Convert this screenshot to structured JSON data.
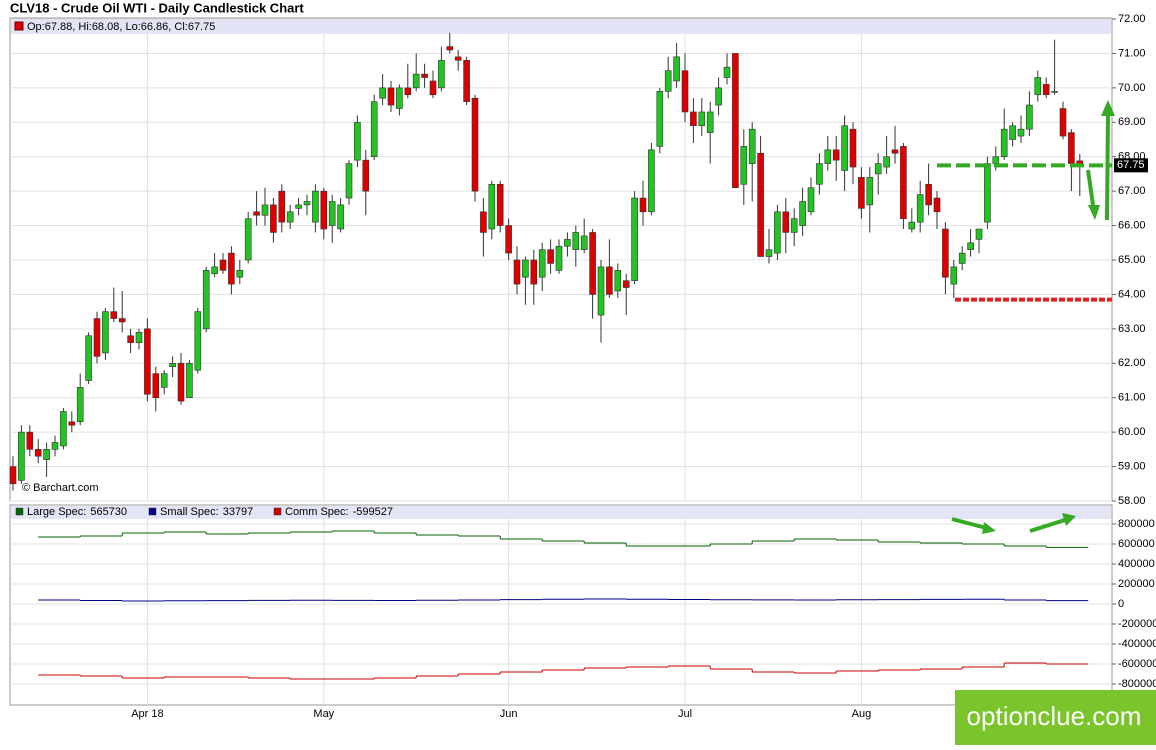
{
  "chart_data": {
    "type": "candlestick",
    "title": "CLV18 - Crude Oil WTI - Daily Candlestick Chart",
    "ohlc_label": "Op:67.88, Hi:68.08, Lo:66.86, Cl:67.75",
    "source": "© Barchart.com",
    "watermark": "optionclue.com",
    "up_color": "#22c322",
    "down_color": "#dd0000",
    "grid": true,
    "ylim": [
      58,
      72
    ],
    "yticks": [
      {
        "value": 58,
        "label": "58.00"
      },
      {
        "value": 59,
        "label": "59.00"
      },
      {
        "value": 60,
        "label": "60.00"
      },
      {
        "value": 61,
        "label": "61.00"
      },
      {
        "value": 62,
        "label": "62.00"
      },
      {
        "value": 63,
        "label": "63.00"
      },
      {
        "value": 64,
        "label": "64.00"
      },
      {
        "value": 65,
        "label": "65.00"
      },
      {
        "value": 66,
        "label": "66.00"
      },
      {
        "value": 67,
        "label": "67.00"
      },
      {
        "value": 68,
        "label": "68.00"
      },
      {
        "value": 69,
        "label": "69.00"
      },
      {
        "value": 70,
        "label": "70.00"
      },
      {
        "value": 71,
        "label": "71.00"
      },
      {
        "value": 72,
        "label": "72.00"
      }
    ],
    "categories": [
      null,
      null,
      null,
      null,
      null,
      null,
      null,
      null,
      null,
      null,
      null,
      null,
      null,
      null,
      null,
      null,
      "Apr 18",
      null,
      null,
      null,
      null,
      null,
      null,
      null,
      null,
      null,
      null,
      null,
      null,
      null,
      null,
      null,
      null,
      null,
      null,
      null,
      null,
      "May",
      null,
      null,
      null,
      null,
      null,
      null,
      null,
      null,
      null,
      null,
      null,
      null,
      null,
      null,
      null,
      null,
      null,
      null,
      null,
      null,
      null,
      "Jun",
      null,
      null,
      null,
      null,
      null,
      null,
      null,
      null,
      null,
      null,
      null,
      null,
      null,
      null,
      null,
      null,
      null,
      null,
      null,
      null,
      "Jul",
      null,
      null,
      null,
      null,
      null,
      null,
      null,
      null,
      null,
      null,
      null,
      null,
      null,
      null,
      null,
      null,
      null,
      null,
      null,
      null,
      "Aug",
      null,
      null,
      null,
      null,
      null,
      null,
      null,
      null,
      null,
      null,
      null,
      null,
      null,
      null,
      null,
      null,
      null,
      null,
      null,
      null,
      null,
      null,
      null,
      null,
      null,
      null
    ],
    "ohlc": [
      [
        59.0,
        59.3,
        58.3,
        58.5
      ],
      [
        58.6,
        60.2,
        58.5,
        60.0
      ],
      [
        60.0,
        60.2,
        59.3,
        59.5
      ],
      [
        59.5,
        59.8,
        59.1,
        59.3
      ],
      [
        59.2,
        59.7,
        58.7,
        59.5
      ],
      [
        59.5,
        59.9,
        59.3,
        59.7
      ],
      [
        59.6,
        60.7,
        59.5,
        60.6
      ],
      [
        60.3,
        60.6,
        60.0,
        60.2
      ],
      [
        60.3,
        61.7,
        60.2,
        61.3
      ],
      [
        61.5,
        62.9,
        61.4,
        62.8
      ],
      [
        63.3,
        63.5,
        62.0,
        62.2
      ],
      [
        62.3,
        63.6,
        62.1,
        63.5
      ],
      [
        63.5,
        64.2,
        63.2,
        63.3
      ],
      [
        63.3,
        64.1,
        62.9,
        63.2
      ],
      [
        62.8,
        63.0,
        62.3,
        62.6
      ],
      [
        62.6,
        63.0,
        62.4,
        62.9
      ],
      [
        63.0,
        63.3,
        60.9,
        61.1
      ],
      [
        61.7,
        61.9,
        60.6,
        61.0
      ],
      [
        61.3,
        61.8,
        61.1,
        61.7
      ],
      [
        61.9,
        62.2,
        61.6,
        62.0
      ],
      [
        62.0,
        62.3,
        60.8,
        60.9
      ],
      [
        61.0,
        62.1,
        61.0,
        62.0
      ],
      [
        61.8,
        63.6,
        61.7,
        63.5
      ],
      [
        63.0,
        64.8,
        62.9,
        64.7
      ],
      [
        64.6,
        65.2,
        64.5,
        64.8
      ],
      [
        65.0,
        65.2,
        64.6,
        64.7
      ],
      [
        65.2,
        65.4,
        64.0,
        64.3
      ],
      [
        64.5,
        65.0,
        64.3,
        64.7
      ],
      [
        65.0,
        66.4,
        64.9,
        66.2
      ],
      [
        66.4,
        67.0,
        66.0,
        66.3
      ],
      [
        66.3,
        67.1,
        66.0,
        66.6
      ],
      [
        66.6,
        66.8,
        65.5,
        65.8
      ],
      [
        67.0,
        67.2,
        65.8,
        66.1
      ],
      [
        66.1,
        66.6,
        65.9,
        66.4
      ],
      [
        66.5,
        66.8,
        66.3,
        66.6
      ],
      [
        66.6,
        66.9,
        66.3,
        66.7
      ],
      [
        66.1,
        67.2,
        65.8,
        67.0
      ],
      [
        67.0,
        67.1,
        65.6,
        65.9
      ],
      [
        66.0,
        66.9,
        65.5,
        66.7
      ],
      [
        65.9,
        66.8,
        65.8,
        66.6
      ],
      [
        66.8,
        67.9,
        66.6,
        67.8
      ],
      [
        67.9,
        69.2,
        67.7,
        69.0
      ],
      [
        67.9,
        68.2,
        66.3,
        67.0
      ],
      [
        68.0,
        69.8,
        67.9,
        69.6
      ],
      [
        69.7,
        70.4,
        69.5,
        70.0
      ],
      [
        70.0,
        70.2,
        69.3,
        69.5
      ],
      [
        69.4,
        70.1,
        69.2,
        70.0
      ],
      [
        70.0,
        70.7,
        69.7,
        69.8
      ],
      [
        70.0,
        71.0,
        69.9,
        70.4
      ],
      [
        70.4,
        70.7,
        70.0,
        70.3
      ],
      [
        70.2,
        70.5,
        69.7,
        69.8
      ],
      [
        70.0,
        71.2,
        69.9,
        70.8
      ],
      [
        71.2,
        71.6,
        71.0,
        71.1
      ],
      [
        70.9,
        71.1,
        70.5,
        70.8
      ],
      [
        70.8,
        70.9,
        69.5,
        69.6
      ],
      [
        69.7,
        69.8,
        66.7,
        67.0
      ],
      [
        66.4,
        66.8,
        65.1,
        65.8
      ],
      [
        65.9,
        67.3,
        65.6,
        67.2
      ],
      [
        67.2,
        67.3,
        65.8,
        66.0
      ],
      [
        66.0,
        66.2,
        65.0,
        65.2
      ],
      [
        65.0,
        65.4,
        64.0,
        64.3
      ],
      [
        64.5,
        65.1,
        63.7,
        65.0
      ],
      [
        65.0,
        65.3,
        63.7,
        64.3
      ],
      [
        64.5,
        65.5,
        64.1,
        65.3
      ],
      [
        65.3,
        65.6,
        64.6,
        64.9
      ],
      [
        64.7,
        65.6,
        64.6,
        65.4
      ],
      [
        65.4,
        65.8,
        65.1,
        65.6
      ],
      [
        65.3,
        66.0,
        64.8,
        65.8
      ],
      [
        65.3,
        66.2,
        65.2,
        65.7
      ],
      [
        65.8,
        65.9,
        63.3,
        64.0
      ],
      [
        63.4,
        65.0,
        62.6,
        64.8
      ],
      [
        64.8,
        65.6,
        63.9,
        64.0
      ],
      [
        64.1,
        64.9,
        63.9,
        64.7
      ],
      [
        64.4,
        64.6,
        63.4,
        64.2
      ],
      [
        64.4,
        67.0,
        64.3,
        66.8
      ],
      [
        66.8,
        67.3,
        66.0,
        66.4
      ],
      [
        66.4,
        68.4,
        66.3,
        68.2
      ],
      [
        68.3,
        70.0,
        68.1,
        69.9
      ],
      [
        69.9,
        70.9,
        69.7,
        70.5
      ],
      [
        70.2,
        71.3,
        70.0,
        70.9
      ],
      [
        70.5,
        71.0,
        69.0,
        69.3
      ],
      [
        69.3,
        69.7,
        68.4,
        68.9
      ],
      [
        68.9,
        69.7,
        68.6,
        69.3
      ],
      [
        68.7,
        69.6,
        67.8,
        69.3
      ],
      [
        69.5,
        70.3,
        69.2,
        70.0
      ],
      [
        70.3,
        71.0,
        70.1,
        70.6
      ],
      [
        71.0,
        71.0,
        67.1,
        67.1
      ],
      [
        67.2,
        68.8,
        66.6,
        68.3
      ],
      [
        67.8,
        69.0,
        66.7,
        68.8
      ],
      [
        68.1,
        68.6,
        65.1,
        65.1
      ],
      [
        65.1,
        65.9,
        64.9,
        65.3
      ],
      [
        65.2,
        66.6,
        65.0,
        66.4
      ],
      [
        66.4,
        66.8,
        65.2,
        65.8
      ],
      [
        65.8,
        66.5,
        65.4,
        66.2
      ],
      [
        66.0,
        67.1,
        65.7,
        66.7
      ],
      [
        66.4,
        67.4,
        66.3,
        67.1
      ],
      [
        67.2,
        68.1,
        66.9,
        67.8
      ],
      [
        67.8,
        68.6,
        67.6,
        68.2
      ],
      [
        68.2,
        68.6,
        67.3,
        67.9
      ],
      [
        67.6,
        69.2,
        67.0,
        68.9
      ],
      [
        68.8,
        69.0,
        67.2,
        67.7
      ],
      [
        67.4,
        67.7,
        66.2,
        66.5
      ],
      [
        66.6,
        67.7,
        65.8,
        67.4
      ],
      [
        67.5,
        68.1,
        66.9,
        67.8
      ],
      [
        67.7,
        68.6,
        67.5,
        68.0
      ],
      [
        68.2,
        68.9,
        67.8,
        68.1
      ],
      [
        68.3,
        68.4,
        65.9,
        66.2
      ],
      [
        65.9,
        66.5,
        65.8,
        66.1
      ],
      [
        66.1,
        67.3,
        65.8,
        66.9
      ],
      [
        67.2,
        67.8,
        66.3,
        66.6
      ],
      [
        66.8,
        67.0,
        65.9,
        66.4
      ],
      [
        65.9,
        66.1,
        64.0,
        64.5
      ],
      [
        64.3,
        65.0,
        63.9,
        64.8
      ],
      [
        64.9,
        65.4,
        64.7,
        65.2
      ],
      [
        65.3,
        65.9,
        65.1,
        65.5
      ],
      [
        65.6,
        65.9,
        65.2,
        65.9
      ],
      [
        66.1,
        68.0,
        65.9,
        67.8
      ],
      [
        67.8,
        68.3,
        67.6,
        68.0
      ],
      [
        68.0,
        69.4,
        67.9,
        68.8
      ],
      [
        68.5,
        69.0,
        68.3,
        68.9
      ],
      [
        68.6,
        69.2,
        68.4,
        68.8
      ],
      [
        68.8,
        69.9,
        68.6,
        69.5
      ],
      [
        69.8,
        70.5,
        69.6,
        70.3
      ],
      [
        70.1,
        70.3,
        69.7,
        69.8
      ],
      [
        69.9,
        71.4,
        69.8,
        69.9
      ],
      [
        69.4,
        69.6,
        68.5,
        68.6
      ],
      [
        68.7,
        68.8,
        67.0,
        67.8
      ],
      [
        67.88,
        68.08,
        66.86,
        67.75
      ]
    ],
    "levels": [
      {
        "value": 67.75,
        "color": "#33aa22"
      },
      {
        "value": 63.85,
        "color": "#dd2222"
      }
    ],
    "cot": {
      "ylim": [
        -1010000,
        990000
      ],
      "yticks": [
        800000,
        600000,
        400000,
        200000,
        0,
        -200000,
        -400000,
        -600000,
        -800000
      ],
      "series": [
        {
          "name": "Large Spec:",
          "color": "#006600",
          "values": [
            670000,
            680000,
            710000,
            720000,
            700000,
            710000,
            720000,
            730000,
            710000,
            690000,
            680000,
            650000,
            630000,
            610000,
            580000,
            580000,
            600000,
            630000,
            650000,
            640000,
            620000,
            610000,
            600000,
            580000,
            565730
          ]
        },
        {
          "name": "Small Spec:",
          "color": "#000088",
          "values": [
            40000,
            35000,
            30000,
            32000,
            34000,
            36000,
            38000,
            36000,
            35000,
            37000,
            40000,
            44000,
            48000,
            50000,
            47000,
            45000,
            43000,
            41000,
            40000,
            42000,
            44000,
            46000,
            48000,
            40000,
            33797
          ]
        },
        {
          "name": "Comm Spec:",
          "color": "#cc0000",
          "values": [
            -710000,
            -720000,
            -740000,
            -730000,
            -730000,
            -740000,
            -750000,
            -750000,
            -740000,
            -720000,
            -700000,
            -680000,
            -660000,
            -640000,
            -630000,
            -620000,
            -650000,
            -680000,
            -690000,
            -670000,
            -660000,
            -650000,
            -630000,
            -590000,
            -599527
          ]
        }
      ]
    }
  }
}
